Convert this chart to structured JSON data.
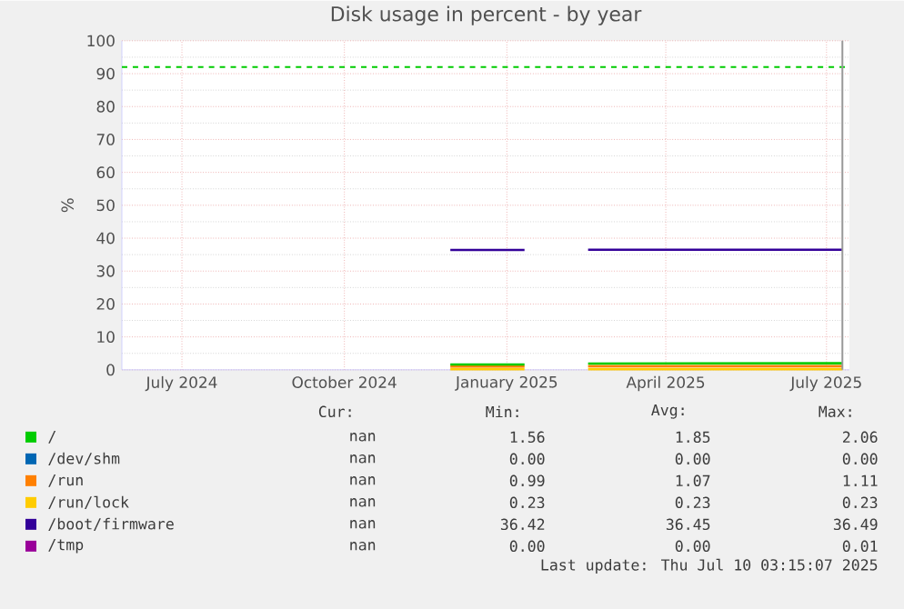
{
  "chart_data": {
    "type": "line",
    "title": "Disk usage in percent - by year",
    "ylabel": "%",
    "x": [
      "2024-11-30",
      "2025-01-11",
      "2025-01-12",
      "2025-02-16",
      "2025-07-10"
    ],
    "xlim": [
      "2024-05-28",
      "2025-07-14"
    ],
    "xticks": [
      {
        "value": "2024-07-01",
        "label": "July 2024"
      },
      {
        "value": "2024-10-01",
        "label": "October 2024"
      },
      {
        "value": "2025-01-01",
        "label": "January 2025"
      },
      {
        "value": "2025-04-01",
        "label": "April 2025"
      },
      {
        "value": "2025-07-01",
        "label": "July 2025"
      }
    ],
    "ylim": [
      0,
      100
    ],
    "yticks": [
      0,
      10,
      20,
      30,
      40,
      50,
      60,
      70,
      80,
      90,
      100
    ],
    "grid": true,
    "legend": "bottom",
    "series": [
      {
        "name": "/dev/shm",
        "color": "#0066b3",
        "values": [
          null,
          null,
          null,
          null,
          null
        ]
      },
      {
        "name": "/tmp",
        "color": "#990099",
        "values": [
          null,
          null,
          null,
          null,
          null
        ]
      },
      {
        "name": "/run/lock",
        "color": "#ffcc00",
        "values": [
          0.2,
          0.2,
          null,
          0.2,
          0.2
        ]
      },
      {
        "name": "/run",
        "color": "#ff8000",
        "values": [
          1.0,
          1.0,
          null,
          1.1,
          1.1
        ]
      },
      {
        "name": "/",
        "color": "#00cc00",
        "values": [
          1.6,
          1.6,
          null,
          1.9,
          2.0
        ]
      },
      {
        "name": "/boot/firmware",
        "color": "#330099",
        "values": [
          36.4,
          36.4,
          null,
          36.5,
          36.5
        ]
      }
    ],
    "ref_lines": [
      {
        "axis": "y",
        "value": 92,
        "color": "#00cc00",
        "line_style": "dashed"
      },
      {
        "axis": "x",
        "value": "2025-07-10",
        "color": "#999999",
        "line_style": "solid"
      }
    ],
    "annotations": [
      "Cur:",
      "Min:",
      "Avg:",
      "Max:",
      "nan",
      "1.56",
      "1.85",
      "2.06",
      "nan",
      "0.00",
      "0.00",
      "0.00",
      "nan",
      "0.99",
      "1.07",
      "1.11",
      "nan",
      "0.23",
      "0.23",
      "0.23",
      "nan",
      "36.42",
      "36.45",
      "36.49",
      "nan",
      "0.00",
      "0.00",
      "0.01",
      "Last update: Thu Jul 10 03:15:07 2025"
    ]
  }
}
